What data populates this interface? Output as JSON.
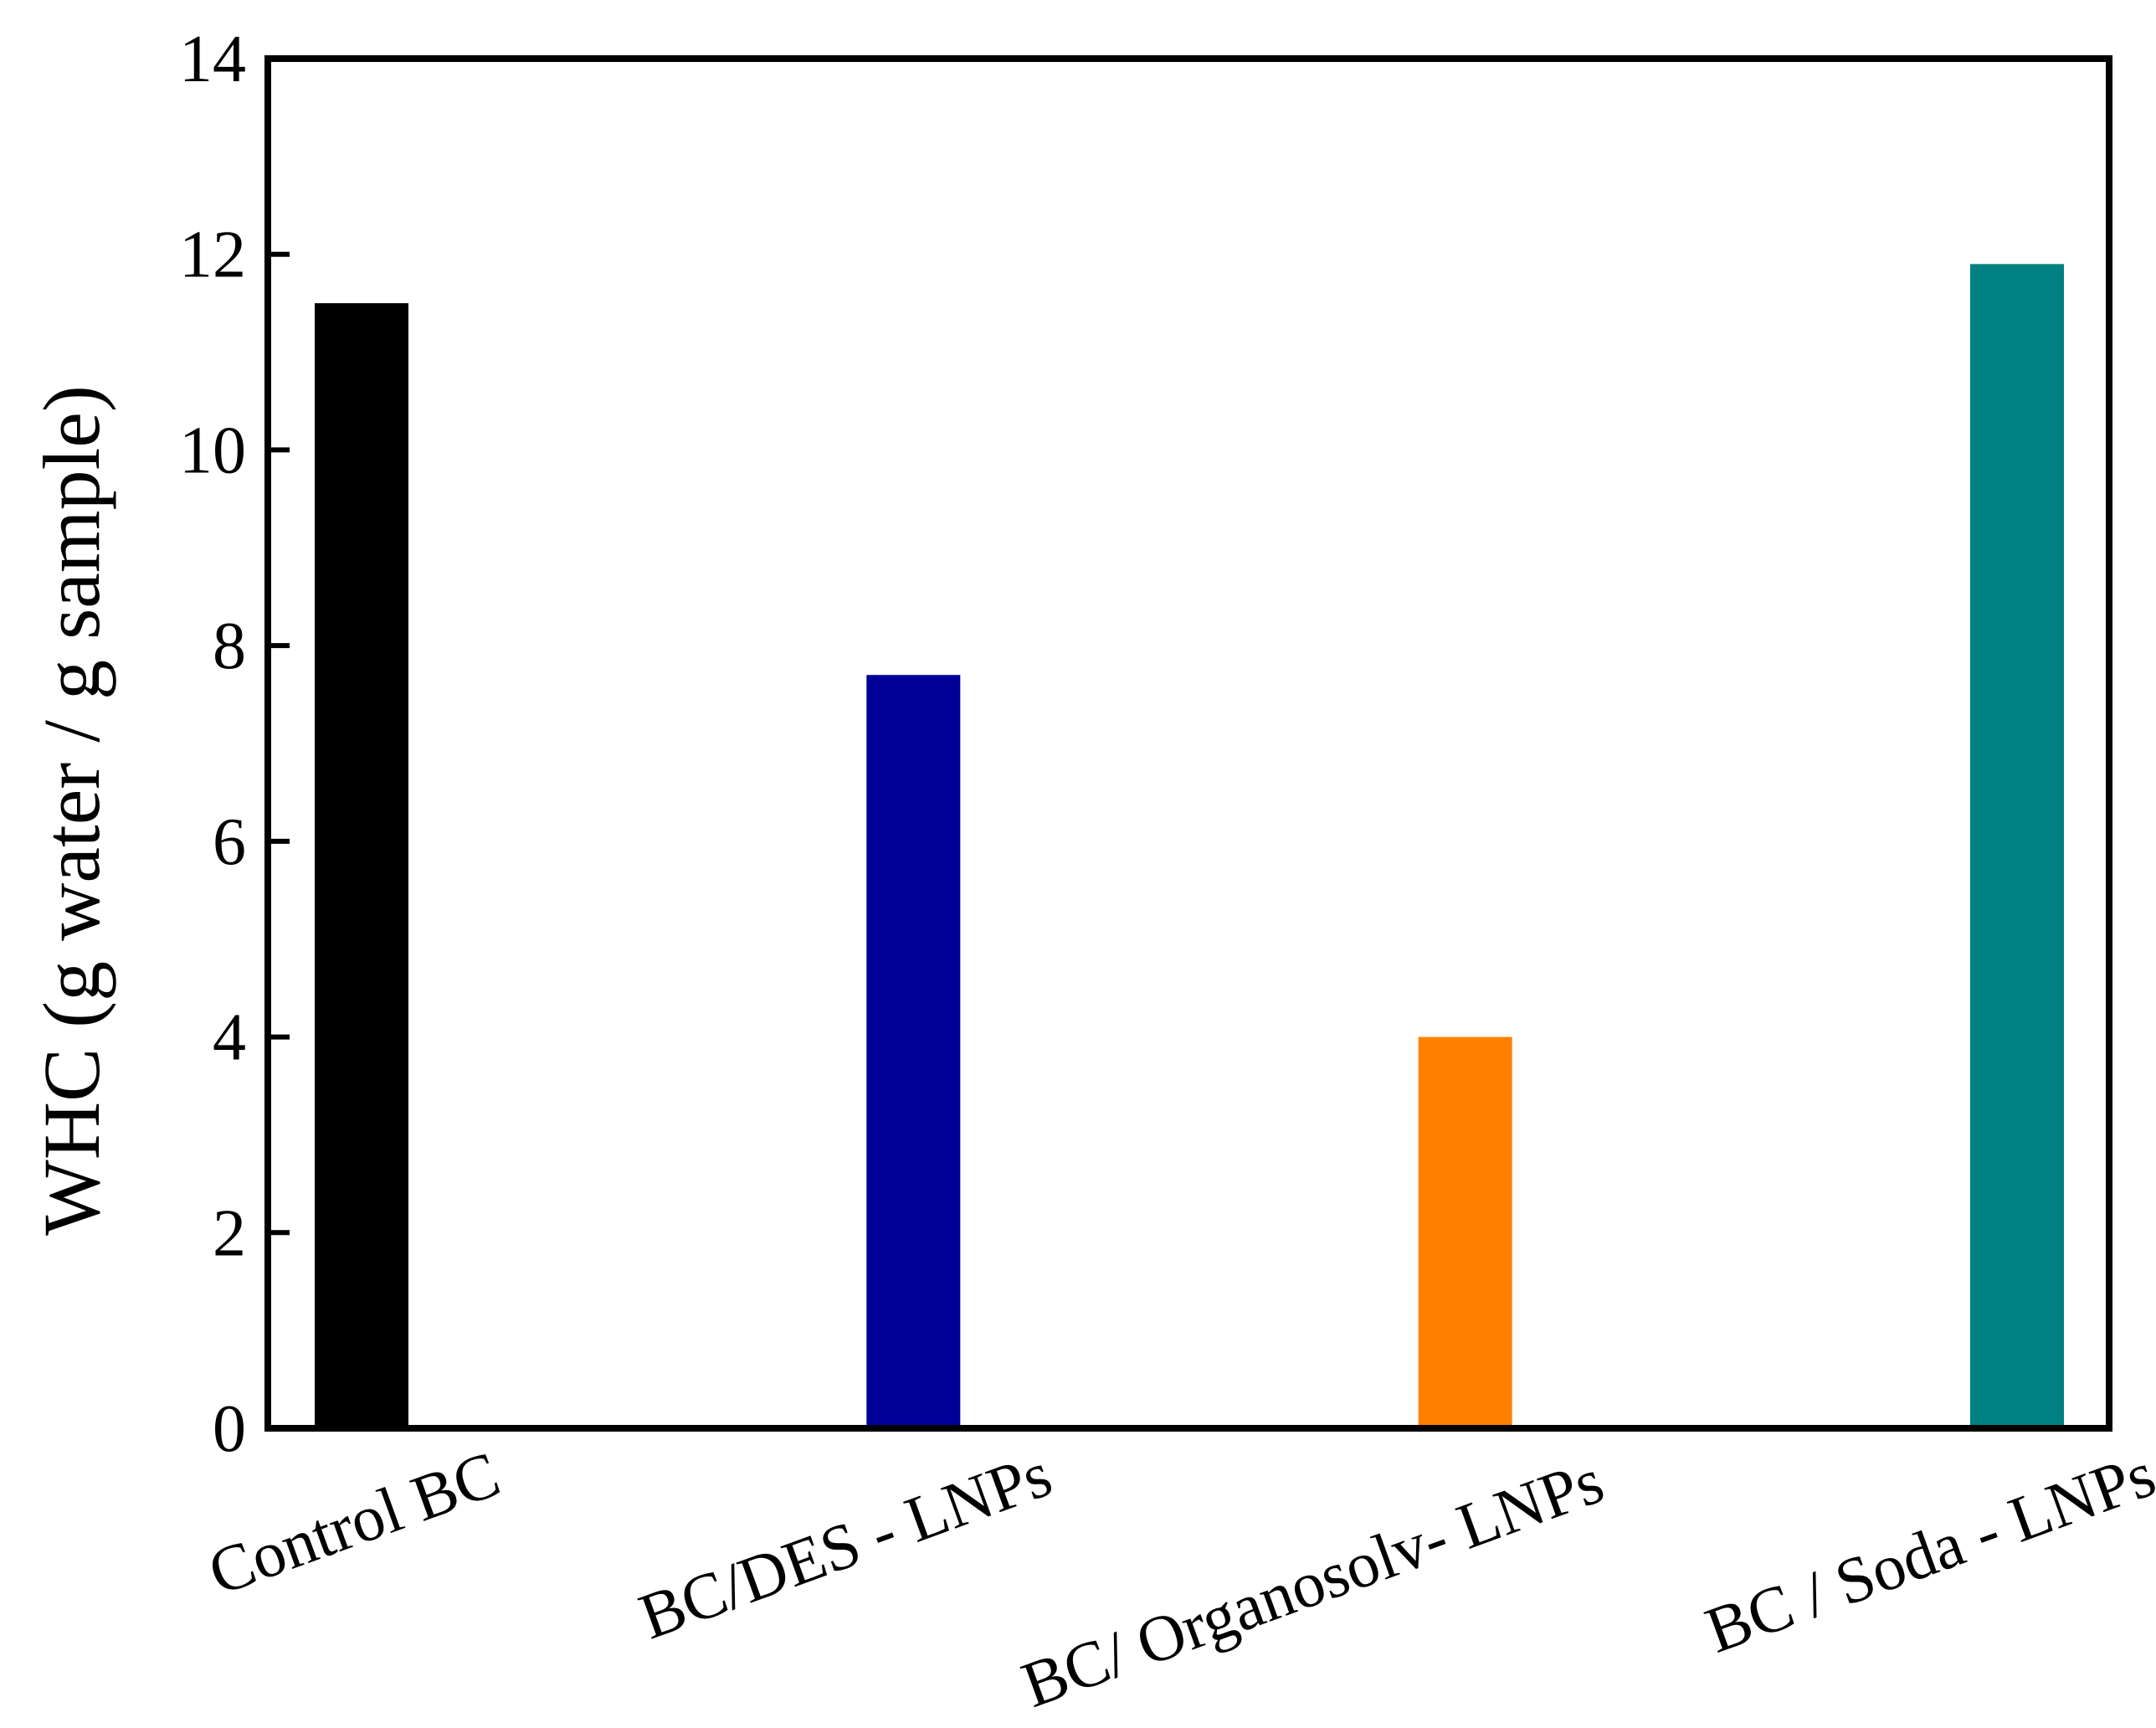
{
  "chart_data": {
    "type": "bar",
    "title": "",
    "xlabel": "",
    "ylabel": "WHC (g water / g sample)",
    "ylim": [
      0,
      14
    ],
    "yticks": [
      0,
      2,
      4,
      6,
      8,
      10,
      12,
      14
    ],
    "grid": false,
    "legend": "none",
    "categories": [
      "Control BC",
      "BC/DES - LNPs",
      "BC/ Organosolv- LNPs",
      "BC / Soda - LNPs"
    ],
    "values": [
      11.5,
      7.7,
      4.0,
      11.9
    ],
    "colors": [
      "#000000",
      "#000099",
      "#ff8000",
      "#008080"
    ]
  }
}
